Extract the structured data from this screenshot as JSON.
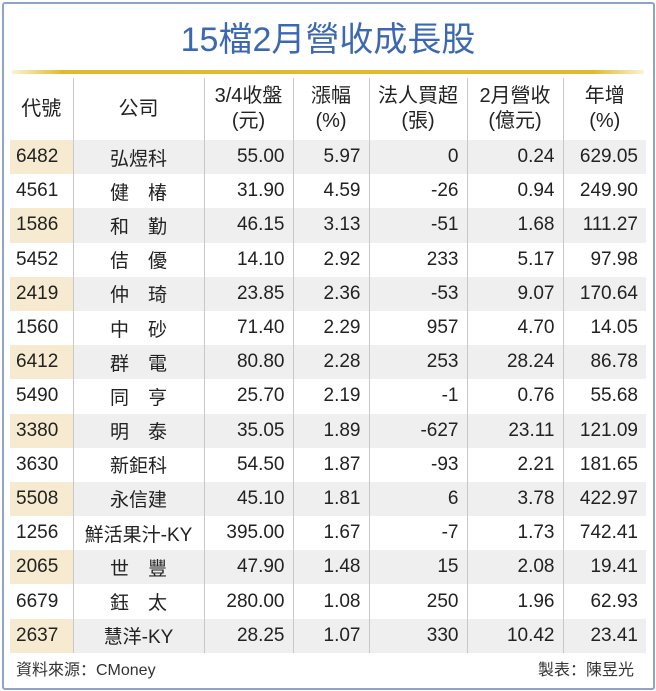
{
  "title": "15檔2月營收成長股",
  "headers": [
    {
      "line1": "代號",
      "line2": ""
    },
    {
      "line1": "公司",
      "line2": ""
    },
    {
      "line1": "3/4收盤",
      "line2": "(元)"
    },
    {
      "line1": "漲幅",
      "line2": "(%)"
    },
    {
      "line1": "法人買超",
      "line2": "(張)"
    },
    {
      "line1": "2月營收",
      "line2": "(億元)"
    },
    {
      "line1": "年增",
      "line2": "(%)"
    }
  ],
  "rows": [
    [
      "6482",
      "弘煜科",
      "55.00",
      "5.97",
      "0",
      "0.24",
      "629.05"
    ],
    [
      "4561",
      "健　椿",
      "31.90",
      "4.59",
      "-26",
      "0.94",
      "249.90"
    ],
    [
      "1586",
      "和　勤",
      "46.15",
      "3.13",
      "-51",
      "1.68",
      "111.27"
    ],
    [
      "5452",
      "佶　優",
      "14.10",
      "2.92",
      "233",
      "5.17",
      "97.98"
    ],
    [
      "2419",
      "仲　琦",
      "23.85",
      "2.36",
      "-53",
      "9.07",
      "170.64"
    ],
    [
      "1560",
      "中　砂",
      "71.40",
      "2.29",
      "957",
      "4.70",
      "14.05"
    ],
    [
      "6412",
      "群　電",
      "80.80",
      "2.28",
      "253",
      "28.24",
      "86.78"
    ],
    [
      "5490",
      "同　亨",
      "25.70",
      "2.19",
      "-1",
      "0.76",
      "55.68"
    ],
    [
      "3380",
      "明　泰",
      "35.05",
      "1.89",
      "-627",
      "23.11",
      "121.09"
    ],
    [
      "3630",
      "新鉅科",
      "54.50",
      "1.87",
      "-93",
      "2.21",
      "181.65"
    ],
    [
      "5508",
      "永信建",
      "45.10",
      "1.81",
      "6",
      "3.78",
      "422.97"
    ],
    [
      "1256",
      "鮮活果汁-KY",
      "395.00",
      "1.67",
      "-7",
      "1.73",
      "742.41"
    ],
    [
      "2065",
      "世　豐",
      "47.90",
      "1.48",
      "15",
      "2.08",
      "19.41"
    ],
    [
      "6679",
      "鈺　太",
      "280.00",
      "1.08",
      "250",
      "1.96",
      "62.93"
    ],
    [
      "2637",
      "慧洋-KY",
      "28.25",
      "1.07",
      "330",
      "10.42",
      "23.41"
    ]
  ],
  "footer": {
    "source": "資料來源：CMoney",
    "credit": "製表：陳昱光"
  },
  "colors": {
    "title": "#3c68b1",
    "gold_rule": "#e3b92a",
    "code_stripe": "#f6ebd0",
    "row_stripe": "#efefef",
    "frame": "#90a4c8"
  }
}
